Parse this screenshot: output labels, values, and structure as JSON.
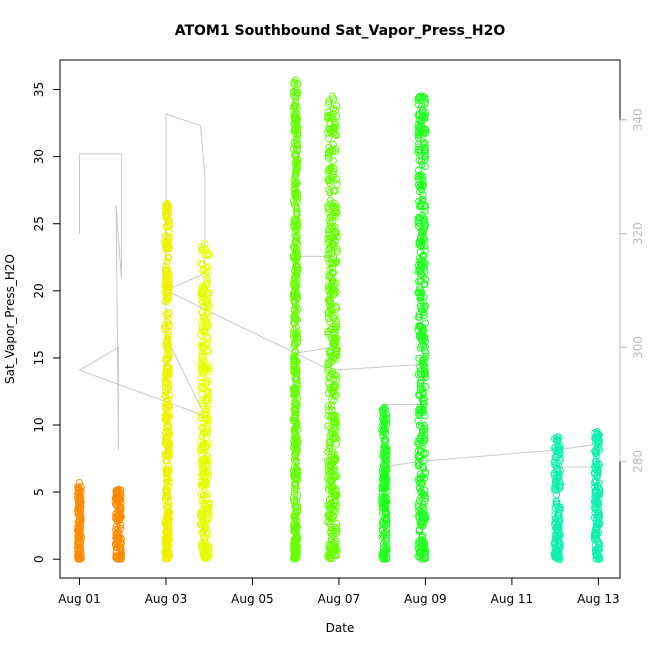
{
  "chart_data": {
    "type": "scatter",
    "title": "ATOM1 Southbound Sat_Vapor_Press_H2O",
    "xlabel": "Date",
    "ylabel": "Sat_Vapor_Press_H2O",
    "x_ticks": [
      "Aug 01",
      "Aug 03",
      "Aug 05",
      "Aug 07",
      "Aug 09",
      "Aug 11",
      "Aug 13"
    ],
    "x_tick_days": [
      1,
      3,
      5,
      7,
      9,
      11,
      13
    ],
    "xlim": [
      0.55,
      13.5
    ],
    "y_ticks": [
      0,
      5,
      10,
      15,
      20,
      25,
      30,
      35
    ],
    "ylim": [
      -1.4,
      37.2
    ],
    "y2_ticks": [
      280,
      300,
      320,
      340
    ],
    "y2lim": [
      259.5,
      350.5
    ],
    "grid": false,
    "legend": "none",
    "point_series": [
      {
        "color": "#FF8C00",
        "day": 1.0,
        "min": 0.0,
        "max": 5.7,
        "width": 0.08
      },
      {
        "color": "#FF8C00",
        "day": 1.9,
        "min": 0.0,
        "max": 5.2,
        "width": 0.14
      },
      {
        "color": "#F0F000",
        "day": 3.03,
        "min": 0.0,
        "max": 26.5,
        "width": 0.1
      },
      {
        "color": "#E6FF00",
        "day": 3.9,
        "min": 0.0,
        "max": 23.5,
        "width": 0.2
      },
      {
        "color": "#66FF00",
        "day": 6.0,
        "min": 0.0,
        "max": 35.7,
        "width": 0.1
      },
      {
        "color": "#66FF00",
        "day": 6.85,
        "min": 0.0,
        "max": 34.5,
        "width": 0.22
      },
      {
        "color": "#22FF22",
        "day": 8.05,
        "min": 0.0,
        "max": 11.3,
        "width": 0.12
      },
      {
        "color": "#22FF22",
        "day": 8.92,
        "min": 0.0,
        "max": 34.5,
        "width": 0.18
      },
      {
        "color": "#11F0B0",
        "day": 12.05,
        "min": 0.0,
        "max": 9.1,
        "width": 0.14
      },
      {
        "color": "#11F0B0",
        "day": 12.97,
        "min": 0.0,
        "max": 9.5,
        "width": 0.12
      }
    ],
    "track_line": {
      "color": "#c8c8c8",
      "points": [
        [
          1.0,
          320
        ],
        [
          1.0,
          334
        ],
        [
          1.97,
          334
        ],
        [
          1.97,
          312
        ],
        [
          1.85,
          325
        ],
        [
          1.9,
          282
        ],
        [
          1.9,
          300
        ],
        [
          1.0,
          296
        ],
        [
          3.9,
          288
        ],
        [
          3.0,
          302
        ],
        [
          3.0,
          341
        ],
        [
          3.8,
          339
        ],
        [
          3.9,
          330
        ],
        [
          3.9,
          313
        ],
        [
          3.0,
          310
        ],
        [
          6.0,
          299
        ],
        [
          6.8,
          300
        ],
        [
          6.8,
          316
        ],
        [
          6.0,
          316
        ],
        [
          6.0,
          299
        ],
        [
          6.8,
          296
        ],
        [
          8.9,
          297
        ],
        [
          8.9,
          290
        ],
        [
          8.1,
          290
        ],
        [
          8.0,
          279
        ],
        [
          8.9,
          280
        ],
        [
          12.05,
          282
        ],
        [
          12.97,
          283
        ],
        [
          12.97,
          279
        ],
        [
          12.05,
          279
        ]
      ]
    }
  }
}
